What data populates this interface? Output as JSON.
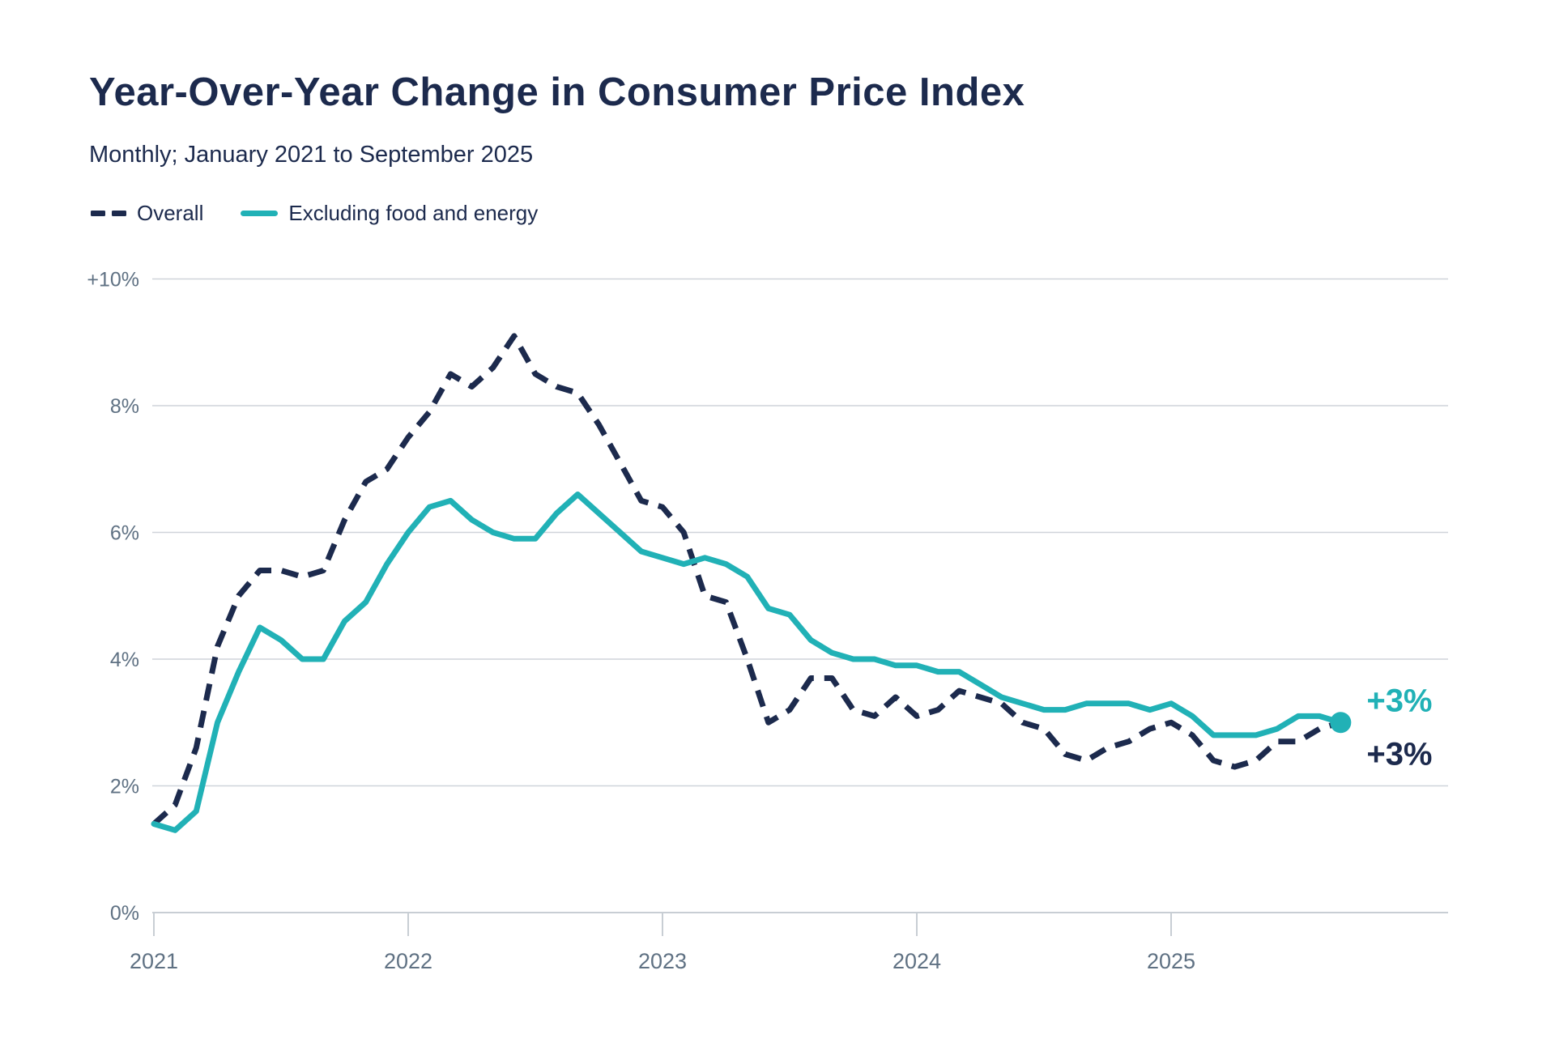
{
  "header": {
    "title": "Year-Over-Year Change in Consumer Price Index",
    "subtitle": "Monthly; January 2021 to September 2025"
  },
  "legend": [
    {
      "label": "Overall",
      "swatch": "dashed",
      "color": "#1c2a4d"
    },
    {
      "label": "Excluding food and energy",
      "swatch": "solid",
      "color": "#21b1b6"
    }
  ],
  "colors": {
    "navy": "#1c2a4d",
    "teal": "#21b1b6",
    "axis_label": "#5f7183",
    "gridline": "#cfd4da",
    "axis_line": "#b6bdc6",
    "background": "#ffffff"
  },
  "chart_data": {
    "type": "line",
    "title": "Year-Over-Year Change in Consumer Price Index",
    "subtitle": "Monthly; January 2021 to September 2025",
    "x_unit": "month",
    "x_start": "2021-01",
    "x_end": "2025-09",
    "x_tick_labels": [
      "2021",
      "2022",
      "2023",
      "2024",
      "2025"
    ],
    "x_tick_month_index": [
      0,
      12,
      24,
      36,
      48
    ],
    "ylim": [
      0,
      10
    ],
    "y_tick_values": [
      0,
      2,
      4,
      6,
      8,
      10
    ],
    "y_tick_labels": [
      "0%",
      "2%",
      "4%",
      "6%",
      "8%",
      "+10%"
    ],
    "grid": true,
    "legend_position": "top-left",
    "series": [
      {
        "name": "Overall",
        "color": "#1c2a4d",
        "dash": true,
        "end_label": "+3%",
        "end_dot": false,
        "values": [
          1.4,
          1.7,
          2.6,
          4.2,
          5.0,
          5.4,
          5.4,
          5.3,
          5.4,
          6.2,
          6.8,
          7.0,
          7.5,
          7.9,
          8.5,
          8.3,
          8.6,
          9.1,
          8.5,
          8.3,
          8.2,
          7.7,
          7.1,
          6.5,
          6.4,
          6.0,
          5.0,
          4.9,
          4.0,
          3.0,
          3.2,
          3.7,
          3.7,
          3.2,
          3.1,
          3.4,
          3.1,
          3.2,
          3.5,
          3.4,
          3.3,
          3.0,
          2.9,
          2.5,
          2.4,
          2.6,
          2.7,
          2.9,
          3.0,
          2.8,
          2.4,
          2.3,
          2.4,
          2.7,
          2.7,
          2.9,
          3.0
        ]
      },
      {
        "name": "Excluding food and energy",
        "color": "#21b1b6",
        "dash": false,
        "end_label": "+3%",
        "end_dot": true,
        "values": [
          1.4,
          1.3,
          1.6,
          3.0,
          3.8,
          4.5,
          4.3,
          4.0,
          4.0,
          4.6,
          4.9,
          5.5,
          6.0,
          6.4,
          6.5,
          6.2,
          6.0,
          5.9,
          5.9,
          6.3,
          6.6,
          6.3,
          6.0,
          5.7,
          5.6,
          5.5,
          5.6,
          5.5,
          5.3,
          4.8,
          4.7,
          4.3,
          4.1,
          4.0,
          4.0,
          3.9,
          3.9,
          3.8,
          3.8,
          3.6,
          3.4,
          3.3,
          3.2,
          3.2,
          3.3,
          3.3,
          3.3,
          3.2,
          3.3,
          3.1,
          2.8,
          2.8,
          2.8,
          2.9,
          3.1,
          3.1,
          3.0
        ]
      }
    ]
  }
}
